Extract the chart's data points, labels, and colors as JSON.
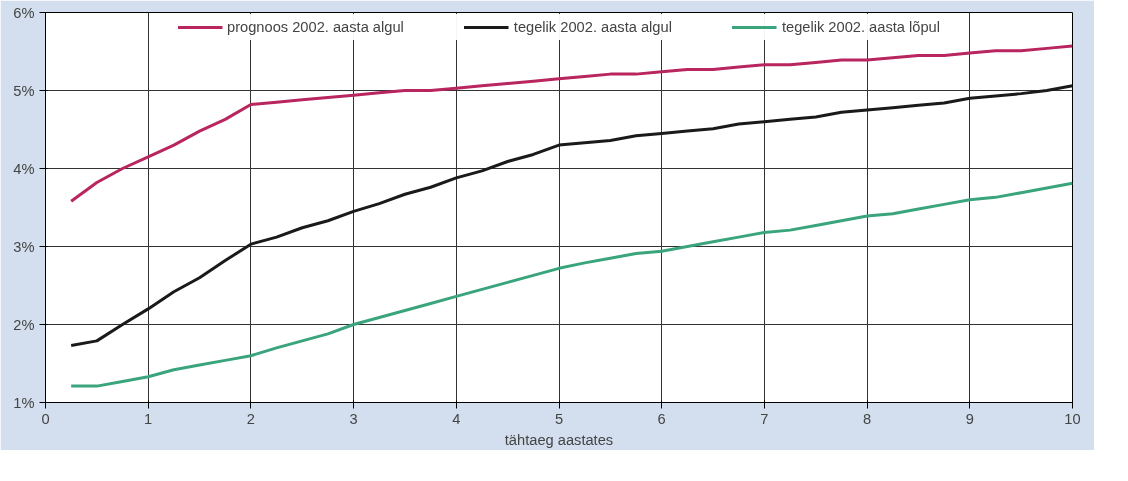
{
  "chart_data": {
    "type": "line",
    "xlabel": "tähtaeg aastates",
    "x": [
      0.25,
      0.5,
      0.75,
      1,
      1.25,
      1.5,
      1.75,
      2,
      2.25,
      2.5,
      2.75,
      3,
      3.25,
      3.5,
      3.75,
      4,
      4.25,
      4.5,
      4.75,
      5,
      5.25,
      5.5,
      5.75,
      6,
      6.25,
      6.5,
      6.75,
      7,
      7.25,
      7.5,
      7.75,
      8,
      8.25,
      8.5,
      8.75,
      9,
      9.25,
      9.5,
      9.75,
      10
    ],
    "series": [
      {
        "name": "prognoos 2002. aasta algul",
        "color": "#b8255f",
        "values": [
          3.58,
          3.82,
          4.0,
          4.15,
          4.3,
          4.48,
          4.63,
          4.82,
          4.85,
          4.88,
          4.91,
          4.94,
          4.97,
          5.0,
          5.0,
          5.03,
          5.06,
          5.09,
          5.12,
          5.15,
          5.18,
          5.21,
          5.21,
          5.24,
          5.27,
          5.27,
          5.3,
          5.33,
          5.33,
          5.36,
          5.39,
          5.39,
          5.42,
          5.45,
          5.45,
          5.48,
          5.51,
          5.51,
          5.54,
          5.57
        ]
      },
      {
        "name": "tegelik 2002. aasta algul",
        "color": "#1a1a1a",
        "values": [
          1.73,
          1.79,
          2.0,
          2.2,
          2.42,
          2.6,
          2.82,
          3.03,
          3.12,
          3.24,
          3.33,
          3.45,
          3.55,
          3.67,
          3.76,
          3.88,
          3.97,
          4.09,
          4.18,
          4.3,
          4.33,
          4.36,
          4.42,
          4.45,
          4.48,
          4.51,
          4.57,
          4.6,
          4.63,
          4.66,
          4.72,
          4.75,
          4.78,
          4.81,
          4.84,
          4.9,
          4.93,
          4.96,
          5.0,
          5.06
        ]
      },
      {
        "name": "tegelik 2002. aasta lõpul",
        "color": "#3aa57c",
        "values": [
          1.21,
          1.21,
          1.27,
          1.33,
          1.42,
          1.48,
          1.54,
          1.6,
          1.7,
          1.79,
          1.88,
          2.0,
          2.09,
          2.18,
          2.27,
          2.36,
          2.45,
          2.54,
          2.63,
          2.72,
          2.79,
          2.85,
          2.91,
          2.94,
          3.0,
          3.06,
          3.12,
          3.18,
          3.21,
          3.27,
          3.33,
          3.39,
          3.42,
          3.48,
          3.54,
          3.6,
          3.63,
          3.69,
          3.75,
          3.81
        ]
      }
    ],
    "xlim": [
      0,
      10
    ],
    "xticks": [
      0,
      1,
      2,
      3,
      4,
      5,
      6,
      7,
      8,
      9,
      10
    ],
    "ylim": [
      1,
      6
    ],
    "yticks": [
      {
        "value": 1,
        "label": "1%"
      },
      {
        "value": 2,
        "label": "2%"
      },
      {
        "value": 3,
        "label": "3%"
      },
      {
        "value": 4,
        "label": "4%"
      },
      {
        "value": 5,
        "label": "5%"
      },
      {
        "value": 6,
        "label": "6%"
      }
    ],
    "grid": true,
    "legend": "top",
    "marker": "none",
    "line_style": "solid"
  }
}
